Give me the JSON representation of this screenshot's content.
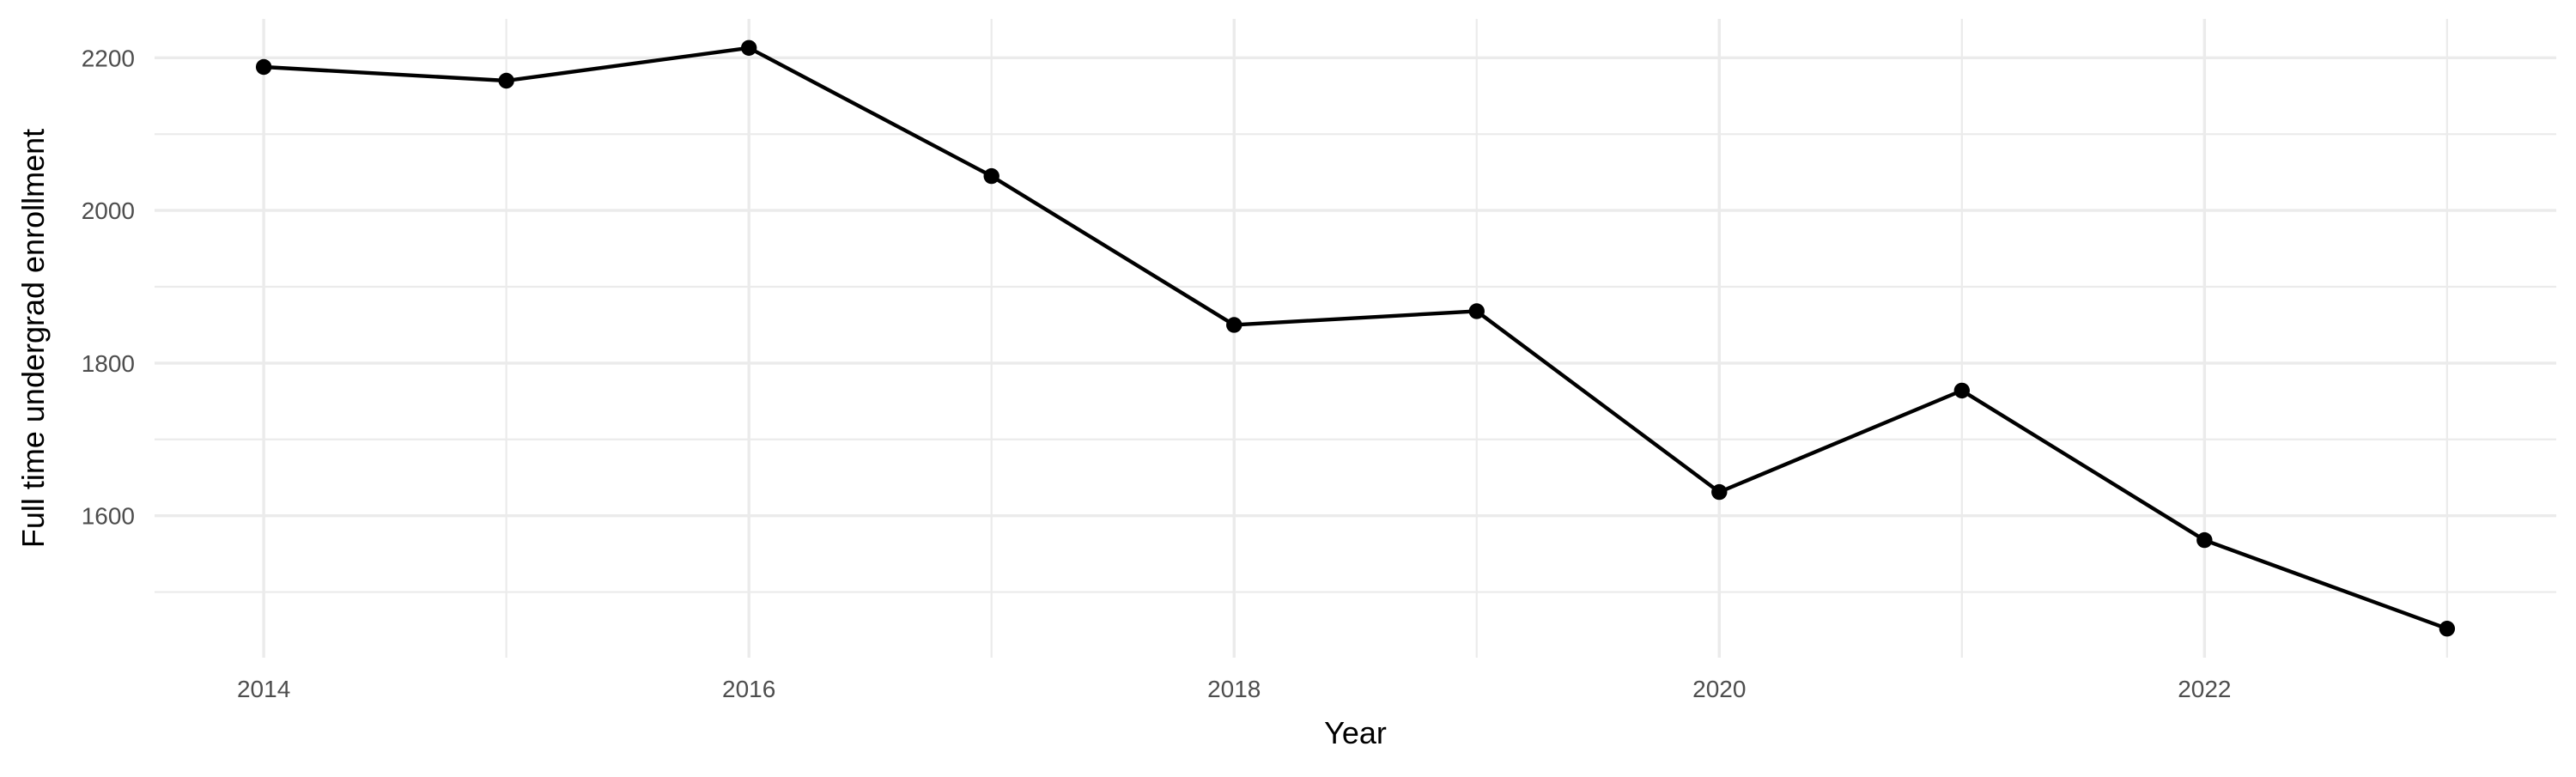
{
  "chart_data": {
    "type": "line",
    "title": "",
    "xlabel": "Year",
    "ylabel": "Full time undergrad enrollment",
    "x": [
      2014,
      2015,
      2016,
      2017,
      2018,
      2019,
      2020,
      2021,
      2022,
      2023
    ],
    "series": [
      {
        "name": "Full time undergrad enrollment",
        "values": [
          2188,
          2170,
          2213,
          2045,
          1850,
          1868,
          1631,
          1764,
          1568,
          1452
        ]
      }
    ],
    "xlim": [
      2013.55,
      2023.45
    ],
    "ylim": [
      1414,
      2251
    ],
    "x_major_ticks": [
      2014,
      2016,
      2018,
      2020,
      2022
    ],
    "x_tick_labels": [
      "2014",
      "2016",
      "2018",
      "2020",
      "2022"
    ],
    "x_minor_ticks": [
      2015,
      2017,
      2019,
      2021,
      2023
    ],
    "y_major_ticks": [
      1600,
      1800,
      2000,
      2200
    ],
    "y_tick_labels": [
      "1600",
      "1800",
      "2000",
      "2200"
    ],
    "y_minor_ticks": [
      1500,
      1700,
      1900,
      2100
    ],
    "grid": "major+minor",
    "legend_position": "none",
    "marker": "filled-circle",
    "colors": {
      "line": "#000000",
      "point": "#000000",
      "grid": "#ebebeb",
      "tick_label": "#4d4d4d",
      "axis_title": "#000000",
      "background": "#ffffff"
    }
  }
}
